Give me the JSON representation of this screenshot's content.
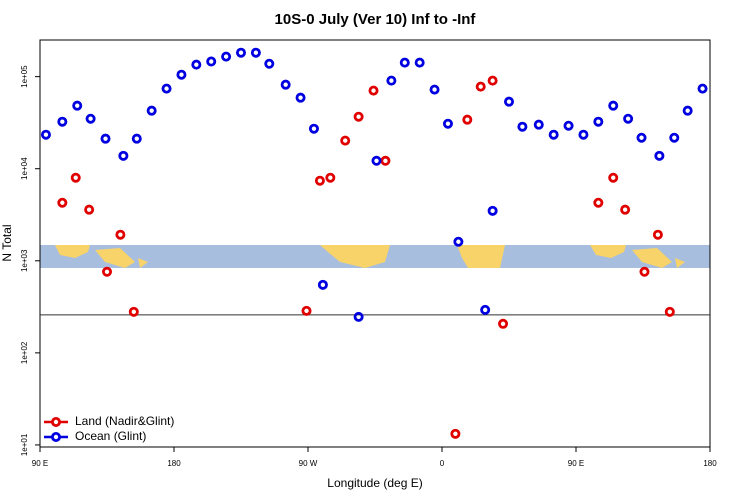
{
  "chart_data": {
    "type": "scatter",
    "title": "10S-0 July (Ver 10)   Inf to -Inf",
    "x_label": "Longitude (deg E)",
    "y_label": "N Total",
    "log_y": true,
    "xlim": [
      90,
      540
    ],
    "ylim": [
      9.5,
      250000
    ],
    "xticks": [
      {
        "value": 90,
        "label": "90 E"
      },
      {
        "value": 180,
        "label": "180"
      },
      {
        "value": 270,
        "label": "90 W"
      },
      {
        "value": 360,
        "label": "0"
      },
      {
        "value": 450,
        "label": "90 E"
      },
      {
        "value": 540,
        "label": "180"
      }
    ],
    "yticks": [
      {
        "value": 10,
        "label": "1e+01"
      },
      {
        "value": 100,
        "label": "1e+02"
      },
      {
        "value": 1000,
        "label": "1e+03"
      },
      {
        "value": 10000,
        "label": "1e+04"
      },
      {
        "value": 100000,
        "label": "1e+05"
      }
    ],
    "reference_line": 259,
    "legend": "bottom-left",
    "series": [
      {
        "name": "Land (Nadir&Glint)",
        "color": "#e00000",
        "x": [
          105,
          114,
          123,
          144,
          135,
          153,
          269,
          278,
          285,
          295,
          304,
          314,
          322,
          369,
          377,
          386,
          394,
          401,
          465,
          475,
          483,
          505,
          496,
          513
        ],
        "values": [
          4270,
          7980,
          3590,
          1920,
          760,
          279,
          286,
          7410,
          7980,
          20200,
          36700,
          70500,
          12200,
          13.2,
          34100,
          77900,
          90500,
          207,
          4270,
          7980,
          3590,
          1920,
          760,
          279
        ]
      },
      {
        "name": "Ocean (Glint)",
        "color": "#0000e0",
        "x": [
          94,
          105,
          115,
          124,
          134,
          146,
          155,
          165,
          175,
          185,
          195,
          205,
          215,
          225,
          235,
          244,
          255,
          265,
          274,
          280,
          304,
          316,
          326,
          335,
          345,
          355,
          364,
          371,
          389,
          394,
          405,
          414,
          425,
          435,
          445,
          455,
          465,
          475,
          485,
          494,
          506,
          516,
          525,
          535
        ],
        "values": [
          23400,
          32400,
          48400,
          34900,
          21200,
          13800,
          21200,
          42700,
          74100,
          105000,
          135000,
          146000,
          165000,
          182000,
          182000,
          138000,
          81800,
          59100,
          27200,
          548,
          246,
          12200,
          90500,
          142000,
          142000,
          72300,
          30800,
          1610,
          293,
          3490,
          53500,
          28600,
          30100,
          23400,
          29300,
          23400,
          32400,
          48400,
          34900,
          21700,
          13800,
          21700,
          42700,
          74100
        ]
      }
    ]
  }
}
